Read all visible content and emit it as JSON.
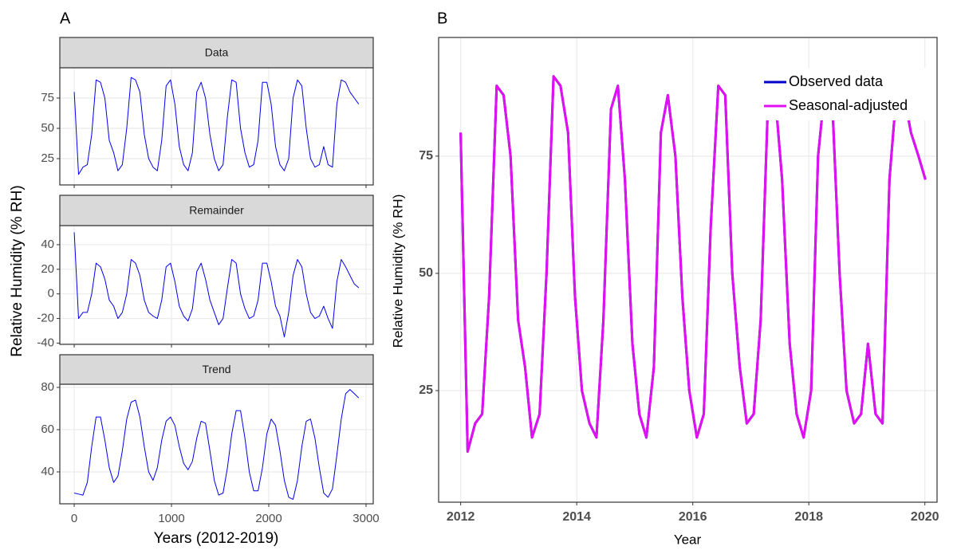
{
  "panel_labels": [
    "A",
    "B"
  ],
  "panel_a": {
    "x_label": "Years (2012-2019)",
    "y_label": "Relative Humidity (% RH)"
  },
  "chart_data": [
    {
      "type": "line",
      "title": "Data",
      "xlim": [
        -148,
        3074
      ],
      "ylim": [
        3.3,
        100
      ],
      "yticks": [
        25,
        50,
        75
      ],
      "grid": true,
      "x": [
        0,
        45,
        90,
        135,
        180,
        225,
        270,
        315,
        360,
        405,
        450,
        495,
        540,
        585,
        630,
        675,
        720,
        765,
        810,
        855,
        900,
        945,
        990,
        1035,
        1080,
        1125,
        1170,
        1215,
        1260,
        1305,
        1350,
        1395,
        1440,
        1485,
        1530,
        1575,
        1620,
        1665,
        1710,
        1755,
        1800,
        1845,
        1890,
        1935,
        1980,
        2025,
        2070,
        2115,
        2160,
        2205,
        2250,
        2295,
        2340,
        2385,
        2430,
        2475,
        2520,
        2565,
        2610,
        2655,
        2700,
        2745,
        2790,
        2835,
        2880,
        2925
      ],
      "series": [
        {
          "name": "Data",
          "color": "#0000ee",
          "values": [
            80,
            12,
            18,
            20,
            45,
            90,
            88,
            75,
            40,
            30,
            15,
            20,
            50,
            92,
            90,
            80,
            45,
            25,
            18,
            15,
            40,
            85,
            90,
            70,
            35,
            20,
            15,
            30,
            80,
            88,
            75,
            45,
            25,
            15,
            20,
            60,
            90,
            88,
            50,
            30,
            18,
            20,
            40,
            88,
            88,
            70,
            35,
            20,
            15,
            25,
            75,
            90,
            85,
            50,
            25,
            18,
            20,
            35,
            20,
            18,
            70,
            90,
            88,
            80,
            75,
            70
          ]
        }
      ]
    },
    {
      "type": "line",
      "title": "Remainder",
      "xlim": [
        -148,
        3074
      ],
      "ylim": [
        -41,
        55.5
      ],
      "yticks": [
        -40,
        -20,
        0,
        20,
        40
      ],
      "grid": true,
      "x": [
        0,
        45,
        90,
        135,
        180,
        225,
        270,
        315,
        360,
        405,
        450,
        495,
        540,
        585,
        630,
        675,
        720,
        765,
        810,
        855,
        900,
        945,
        990,
        1035,
        1080,
        1125,
        1170,
        1215,
        1260,
        1305,
        1350,
        1395,
        1440,
        1485,
        1530,
        1575,
        1620,
        1665,
        1710,
        1755,
        1800,
        1845,
        1890,
        1935,
        1980,
        2025,
        2070,
        2115,
        2160,
        2205,
        2250,
        2295,
        2340,
        2385,
        2430,
        2475,
        2520,
        2565,
        2610,
        2655,
        2700,
        2745,
        2790,
        2835,
        2880,
        2925
      ],
      "series": [
        {
          "name": "Remainder",
          "color": "#0000ee",
          "values": [
            50,
            -20,
            -15,
            -15,
            0,
            25,
            22,
            12,
            -5,
            -10,
            -20,
            -15,
            0,
            28,
            25,
            15,
            -5,
            -15,
            -18,
            -20,
            -5,
            22,
            25,
            10,
            -10,
            -18,
            -22,
            -12,
            18,
            25,
            12,
            -5,
            -15,
            -25,
            -20,
            5,
            28,
            25,
            0,
            -12,
            -20,
            -18,
            -5,
            25,
            25,
            10,
            -10,
            -18,
            -35,
            -15,
            15,
            28,
            22,
            0,
            -15,
            -20,
            -18,
            -10,
            -20,
            -28,
            10,
            28,
            22,
            15,
            8,
            5
          ]
        }
      ]
    },
    {
      "type": "line",
      "title": "Trend",
      "xlim": [
        -148,
        3074
      ],
      "ylim": [
        24.9,
        81.5
      ],
      "yticks": [
        40,
        60,
        80
      ],
      "xticks": [
        0,
        1000,
        2000,
        3000
      ],
      "grid": true,
      "x": [
        0,
        45,
        90,
        135,
        180,
        225,
        270,
        315,
        360,
        405,
        450,
        495,
        540,
        585,
        630,
        675,
        720,
        765,
        810,
        855,
        900,
        945,
        990,
        1035,
        1080,
        1125,
        1170,
        1215,
        1260,
        1305,
        1350,
        1395,
        1440,
        1485,
        1530,
        1575,
        1620,
        1665,
        1710,
        1755,
        1800,
        1845,
        1890,
        1935,
        1980,
        2025,
        2070,
        2115,
        2160,
        2205,
        2250,
        2295,
        2340,
        2385,
        2430,
        2475,
        2520,
        2565,
        2610,
        2655,
        2700,
        2745,
        2790,
        2835,
        2880,
        2925
      ],
      "series": [
        {
          "name": "Trend",
          "color": "#0000ee",
          "values": [
            30,
            29.5,
            29,
            35,
            52,
            66,
            66,
            55,
            42,
            35,
            38,
            50,
            65,
            73,
            74,
            66,
            52,
            40,
            36,
            42,
            55,
            64,
            66,
            62,
            52,
            44,
            41,
            45,
            56,
            64,
            63,
            50,
            36,
            29,
            30,
            42,
            58,
            69,
            69,
            56,
            40,
            31,
            31,
            42,
            58,
            65,
            62,
            50,
            36,
            28,
            27,
            36,
            52,
            64,
            65,
            56,
            42,
            30,
            28,
            32,
            48,
            65,
            77,
            79,
            77,
            75
          ]
        }
      ]
    },
    {
      "type": "line",
      "x_label": "Year",
      "y_label": "Relative Humidity (% RH)",
      "xlim": [
        2011.62,
        2020.21
      ],
      "ylim": [
        1.2,
        100.3
      ],
      "xticks": [
        2012,
        2014,
        2016,
        2018,
        2020
      ],
      "yticks": [
        25,
        50,
        75
      ],
      "grid": true,
      "legend": "top-right",
      "x": [
        2012.0,
        2012.12,
        2012.25,
        2012.37,
        2012.49,
        2012.62,
        2012.74,
        2012.86,
        2012.99,
        2013.11,
        2013.23,
        2013.36,
        2013.48,
        2013.6,
        2013.72,
        2013.85,
        2013.97,
        2014.09,
        2014.22,
        2014.34,
        2014.46,
        2014.59,
        2014.71,
        2014.83,
        2014.96,
        2015.08,
        2015.2,
        2015.33,
        2015.45,
        2015.57,
        2015.7,
        2015.82,
        2015.94,
        2016.07,
        2016.19,
        2016.31,
        2016.44,
        2016.56,
        2016.68,
        2016.81,
        2016.93,
        2017.05,
        2017.17,
        2017.3,
        2017.42,
        2017.54,
        2017.67,
        2017.79,
        2017.91,
        2018.04,
        2018.16,
        2018.28,
        2018.41,
        2018.53,
        2018.65,
        2018.78,
        2018.9,
        2019.02,
        2019.15,
        2019.27,
        2019.39,
        2019.52,
        2019.64,
        2019.76,
        2019.89,
        2020.01
      ],
      "series": [
        {
          "name": "Observed data",
          "color": "#0000cd",
          "values": [
            80,
            12,
            18,
            20,
            45,
            90,
            88,
            75,
            40,
            30,
            15,
            20,
            50,
            92,
            90,
            80,
            45,
            25,
            18,
            15,
            40,
            85,
            90,
            70,
            35,
            20,
            15,
            30,
            80,
            88,
            75,
            45,
            25,
            15,
            20,
            60,
            90,
            88,
            50,
            30,
            18,
            20,
            40,
            88,
            88,
            70,
            35,
            20,
            15,
            25,
            75,
            90,
            85,
            50,
            25,
            18,
            20,
            35,
            20,
            18,
            70,
            90,
            88,
            80,
            75,
            70
          ]
        },
        {
          "name": "Seasonal-adjusted",
          "color": "#e010f0",
          "values": [
            80,
            12,
            18,
            20,
            45,
            90,
            88,
            75,
            40,
            30,
            15,
            20,
            50,
            92,
            90,
            80,
            45,
            25,
            18,
            15,
            40,
            85,
            90,
            70,
            35,
            20,
            15,
            30,
            80,
            88,
            75,
            45,
            25,
            15,
            20,
            60,
            90,
            88,
            50,
            30,
            18,
            20,
            40,
            88,
            88,
            70,
            35,
            20,
            15,
            25,
            75,
            90,
            85,
            50,
            25,
            18,
            20,
            35,
            20,
            18,
            70,
            90,
            88,
            80,
            75,
            70
          ]
        }
      ]
    }
  ]
}
